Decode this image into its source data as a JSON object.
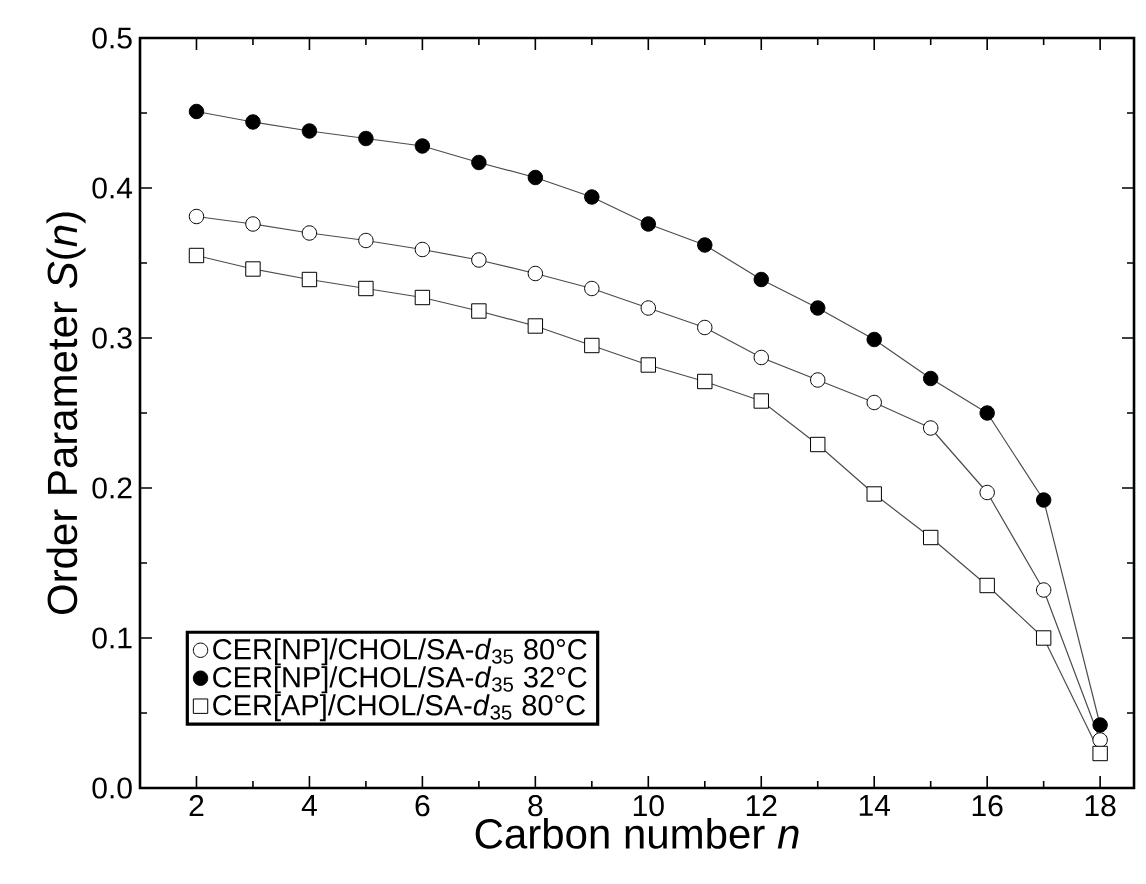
{
  "chart_data": {
    "type": "line",
    "xlabel": "Carbon number *n*",
    "ylabel": "Order Parameter *S*(*n*)",
    "x": [
      2,
      3,
      4,
      5,
      6,
      7,
      8,
      9,
      10,
      11,
      12,
      13,
      14,
      15,
      16,
      17,
      18
    ],
    "series": [
      {
        "name": "CER[NP]/CHOL/SA-*d*$_{35}$  80°C",
        "color": "#ffffff",
        "marker": "circle",
        "values": [
          0.381,
          0.376,
          0.37,
          0.365,
          0.359,
          0.352,
          0.343,
          0.333,
          0.32,
          0.307,
          0.287,
          0.272,
          0.257,
          0.24,
          0.197,
          0.132,
          0.032
        ]
      },
      {
        "name": "CER[NP]/CHOL/SA-*d*$_{35}$  32°C",
        "color": "#000000",
        "marker": "circle",
        "values": [
          0.451,
          0.444,
          0.438,
          0.433,
          0.428,
          0.417,
          0.407,
          0.394,
          0.376,
          0.362,
          0.339,
          0.32,
          0.299,
          0.273,
          0.25,
          0.192,
          0.042
        ]
      },
      {
        "name": "CER[AP]/CHOL/SA-*d*$_{35}$  80°C",
        "color": "#ffffff",
        "marker": "square",
        "values": [
          0.355,
          0.346,
          0.339,
          0.333,
          0.327,
          0.318,
          0.308,
          0.295,
          0.282,
          0.271,
          0.258,
          0.229,
          0.196,
          0.167,
          0.135,
          0.1,
          0.023
        ]
      }
    ],
    "xlim": [
      1,
      18.6
    ],
    "ylim": [
      0,
      0.5
    ],
    "xticks": [
      2,
      4,
      6,
      8,
      10,
      12,
      14,
      16,
      18
    ],
    "yticks": [
      {
        "value": 0,
        "label": "0.0"
      },
      {
        "value": 0.1,
        "label": "0.1"
      },
      {
        "value": 0.2,
        "label": "0.2"
      },
      {
        "value": 0.3,
        "label": "0.3"
      },
      {
        "value": 0.4,
        "label": "0.4"
      },
      {
        "value": 0.5,
        "label": "0.5"
      }
    ],
    "grid": false,
    "legend": "bottom left",
    "line_style": "solid"
  }
}
